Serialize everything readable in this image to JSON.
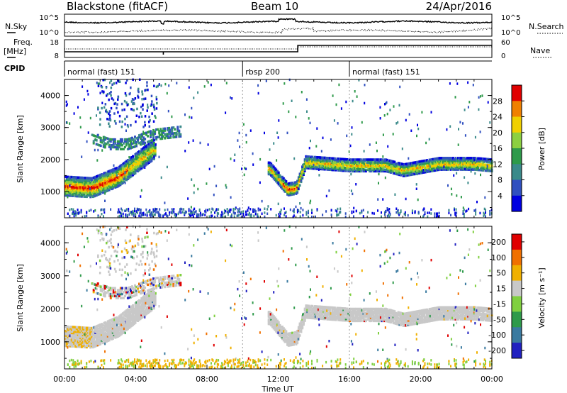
{
  "header": {
    "station": "Blackstone (fitACF)",
    "beam": "Beam 10",
    "date": "24/Apr/2016"
  },
  "noise_panel": {
    "left_label": "N.Sky",
    "right_label": "N.Search",
    "ticks_left": [
      "10^5",
      "10^0"
    ],
    "ticks_right": [
      "10^5",
      "10^0"
    ]
  },
  "freq_panel": {
    "left_label_line1": "Freq.",
    "left_label_line2": "[MHz]",
    "right_label": "Nave",
    "ticks_left": [
      "18",
      "8"
    ],
    "ticks_right": [
      "60",
      "0"
    ]
  },
  "cpid": {
    "label": "CPID",
    "segments": [
      {
        "text": "normal (fast) 151",
        "start_hour": 0
      },
      {
        "text": "rbsp 200",
        "start_hour": 10
      },
      {
        "text": "normal (fast) 151",
        "start_hour": 16
      }
    ]
  },
  "chart_data": [
    {
      "type": "heatmap",
      "title": "",
      "xlabel": "",
      "ylabel": "Slant Range [km]",
      "xlim": [
        0,
        24
      ],
      "ylim": [
        180,
        4500
      ],
      "yticks": [
        "1000",
        "2000",
        "3000",
        "4000"
      ],
      "colorbar_label": "Power [dB]",
      "colorbar_ticks": [
        "4",
        "8",
        "12",
        "16",
        "20",
        "24",
        "28"
      ],
      "colors": [
        "#0000e0",
        "#3050c0",
        "#3a8a8a",
        "#2e9a4a",
        "#8cd040",
        "#f0d000",
        "#f08000",
        "#e00000"
      ],
      "main_band": [
        [
          0.0,
          1150
        ],
        [
          1.5,
          1100
        ],
        [
          3.0,
          1450
        ],
        [
          4.5,
          2100
        ],
        [
          5.0,
          2300
        ],
        [
          11.5,
          1700
        ],
        [
          12.5,
          1050
        ],
        [
          13.0,
          1100
        ],
        [
          13.5,
          1900
        ],
        [
          16.0,
          1800
        ],
        [
          18.0,
          1800
        ],
        [
          19.0,
          1650
        ],
        [
          21.0,
          1850
        ],
        [
          23.0,
          1850
        ],
        [
          24.0,
          1800
        ]
      ],
      "upper_band": [
        [
          1.5,
          2700
        ],
        [
          2.5,
          2500
        ],
        [
          3.5,
          2500
        ],
        [
          5.0,
          2800
        ],
        [
          6.5,
          2900
        ]
      ]
    },
    {
      "type": "heatmap",
      "title": "",
      "xlabel": "Time UT",
      "ylabel": "Slant Range [km]",
      "xlim": [
        0,
        24
      ],
      "ylim": [
        180,
        4500
      ],
      "xticks": [
        "00:00",
        "04:00",
        "08:00",
        "12:00",
        "16:00",
        "20:00",
        "00:00"
      ],
      "yticks": [
        "1000",
        "2000",
        "3000",
        "4000"
      ],
      "colorbar_label": "Velocity [m s⁻¹]",
      "colorbar_ticks": [
        "200",
        "100",
        "50",
        "15",
        "-15",
        "-50",
        "-100",
        "-200"
      ],
      "colors": [
        "#2020c0",
        "#3a7aa0",
        "#2e9a4a",
        "#80d040",
        "#c8c8c8",
        "#f0b000",
        "#f07000",
        "#e00000"
      ]
    }
  ]
}
